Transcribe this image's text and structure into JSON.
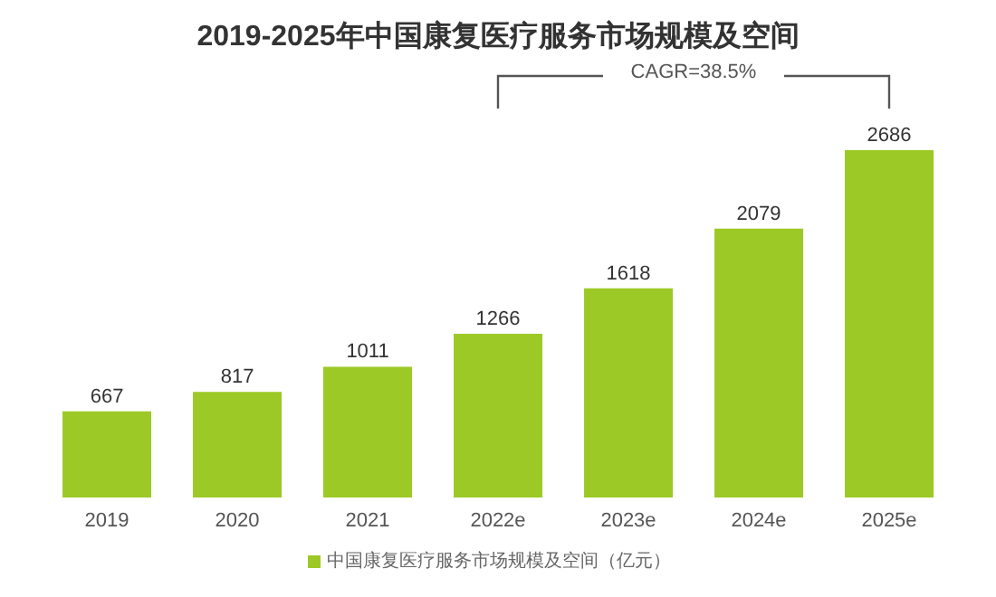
{
  "chart_data": {
    "type": "bar",
    "title": "2019-2025年中国康复医疗服务市场规模及空间",
    "categories": [
      "2019",
      "2020",
      "2021",
      "2022e",
      "2023e",
      "2024e",
      "2025e"
    ],
    "series": [
      {
        "name": "中国康复医疗服务市场规模及空间（亿元）",
        "color": "#9cc925",
        "values": [
          667,
          817,
          1011,
          1266,
          1618,
          2079,
          2686
        ]
      }
    ],
    "data_labels": true,
    "legend": "bottom",
    "annotations": [
      "CAGR=38.5%"
    ]
  }
}
